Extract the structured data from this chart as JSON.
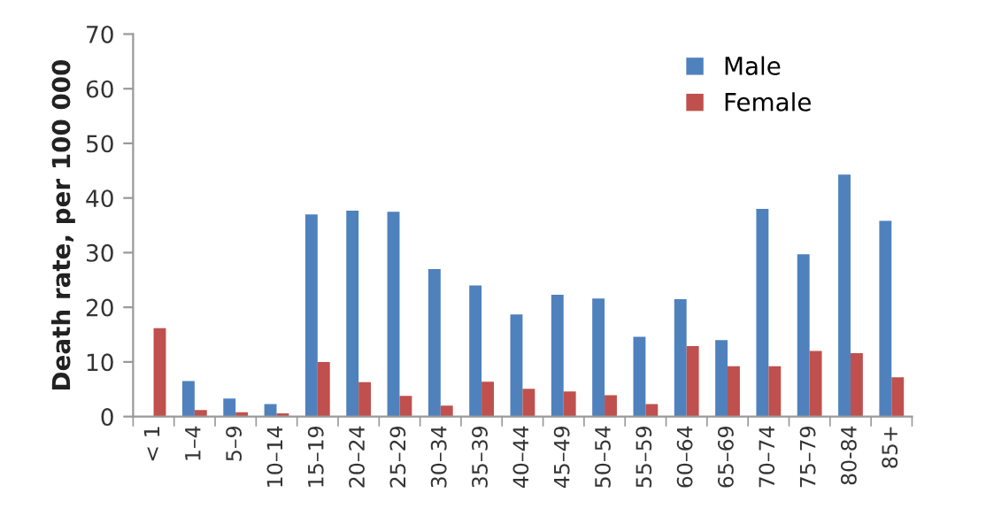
{
  "chart_data": {
    "type": "bar",
    "ylabel": "Death rate, per 100 000",
    "categories": [
      "< 1",
      "1–4",
      "5–9",
      "10–14",
      "15–19",
      "20–24",
      "25–29",
      "30–34",
      "35–39",
      "40–44",
      "45–49",
      "50–54",
      "55–59",
      "60–64",
      "65–69",
      "70–74",
      "75–79",
      "80-84",
      "85+"
    ],
    "series": [
      {
        "name": "Male",
        "color": "#4f81bd",
        "values": [
          null,
          6.5,
          3.3,
          2.3,
          37,
          37.7,
          37.5,
          27,
          24,
          18.7,
          22.3,
          21.6,
          14.6,
          21.5,
          14,
          38,
          29.7,
          44.3,
          35.8
        ]
      },
      {
        "name": "Female",
        "color": "#c0504d",
        "values": [
          16.2,
          1.2,
          0.8,
          0.6,
          10,
          6.3,
          3.8,
          2,
          6.4,
          5.1,
          4.6,
          3.9,
          2.3,
          12.9,
          9.2,
          9.2,
          12,
          11.6,
          7.2
        ]
      }
    ],
    "ylim": [
      0,
      70
    ],
    "yticks": [
      0,
      10,
      20,
      30,
      40,
      50,
      60,
      70
    ],
    "grid": false,
    "legend": "top right"
  }
}
